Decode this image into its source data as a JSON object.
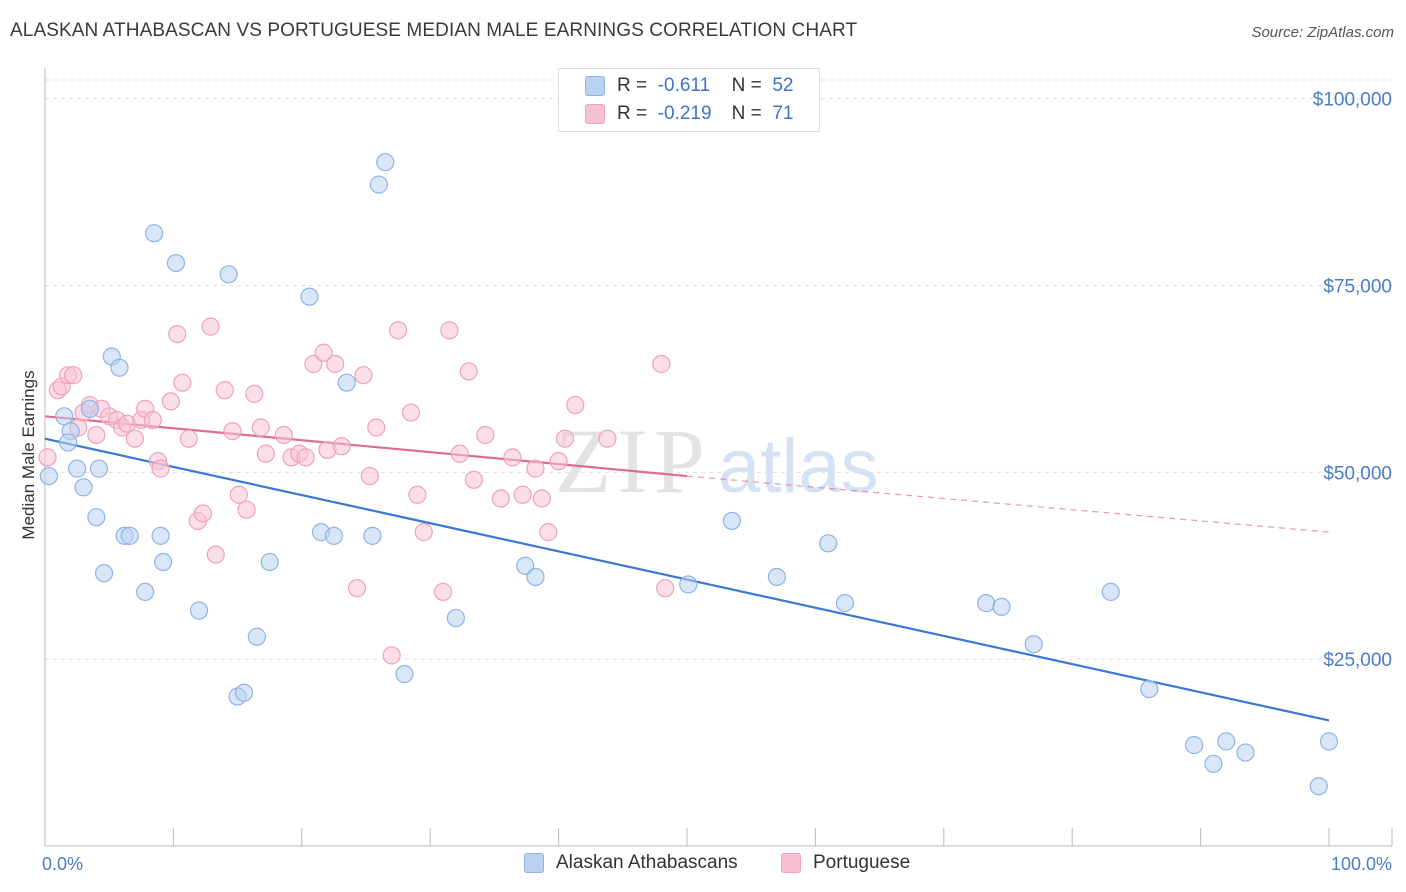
{
  "title": "ALASKAN ATHABASCAN VS PORTUGUESE MEDIAN MALE EARNINGS CORRELATION CHART",
  "source": "Source: ZipAtlas.com",
  "watermark": {
    "zip": "ZIP",
    "atlas": "atlas"
  },
  "legend": {
    "r_label": "R =",
    "n_label": "N =",
    "rows": [
      {
        "r": "-0.611",
        "n": "52"
      },
      {
        "r": "-0.219",
        "n": "71"
      }
    ]
  },
  "bottom_legend": [
    "Alaskan Athabascans",
    "Portuguese"
  ],
  "colors": {
    "blue_fill": "#b9d2f2",
    "blue_stroke": "#8fb3e6",
    "blue_line": "#3a78d4",
    "pink_fill": "#f7c3d3",
    "pink_stroke": "#eea2bb",
    "pink_line": "#e06a93",
    "tick": "#4a7cc7",
    "grid": "#dddddd"
  },
  "chart_data": {
    "type": "scatter",
    "title": "ALASKAN ATHABASCAN VS PORTUGUESE MEDIAN MALE EARNINGS CORRELATION CHART",
    "xlabel": "",
    "ylabel": "Median Male Earnings",
    "x_tick_labels": [
      "0.0%",
      "100.0%"
    ],
    "y_tick_labels": [
      "$25,000",
      "$50,000",
      "$75,000",
      "$100,000"
    ],
    "y_ticks": [
      25000,
      50000,
      75000,
      100000
    ],
    "xlim": [
      0,
      100
    ],
    "ylim": [
      0,
      102500
    ],
    "grid": true,
    "legend_position": "top-center",
    "series": [
      {
        "name": "Alaskan Athabascans",
        "r": -0.611,
        "n": 52,
        "trend": {
          "x": [
            0,
            100
          ],
          "y": [
            54500,
            16800
          ]
        },
        "points": [
          [
            0.3,
            49500
          ],
          [
            1.5,
            57500
          ],
          [
            2,
            55500
          ],
          [
            1.8,
            54000
          ],
          [
            2.5,
            50500
          ],
          [
            3,
            48000
          ],
          [
            3.5,
            58500
          ],
          [
            4,
            44000
          ],
          [
            4.2,
            50500
          ],
          [
            4.6,
            36500
          ],
          [
            5.2,
            65500
          ],
          [
            5.8,
            64000
          ],
          [
            6.2,
            41500
          ],
          [
            6.6,
            41500
          ],
          [
            7.8,
            34000
          ],
          [
            8.5,
            82000
          ],
          [
            9,
            41500
          ],
          [
            9.2,
            38000
          ],
          [
            10.2,
            78000
          ],
          [
            12,
            31500
          ],
          [
            14.3,
            76500
          ],
          [
            15,
            20000
          ],
          [
            15.5,
            20500
          ],
          [
            16.5,
            28000
          ],
          [
            17.5,
            38000
          ],
          [
            20.6,
            73500
          ],
          [
            21.5,
            42000
          ],
          [
            22.5,
            41500
          ],
          [
            23.5,
            62000
          ],
          [
            25.5,
            41500
          ],
          [
            26,
            88500
          ],
          [
            26.5,
            91500
          ],
          [
            28,
            23000
          ],
          [
            32,
            30500
          ],
          [
            37.4,
            37500
          ],
          [
            38.2,
            36000
          ],
          [
            50.1,
            35000
          ],
          [
            53.5,
            43500
          ],
          [
            57,
            36000
          ],
          [
            61,
            40500
          ],
          [
            62.3,
            32500
          ],
          [
            73.3,
            32500
          ],
          [
            74.5,
            32000
          ],
          [
            77,
            27000
          ],
          [
            83,
            34000
          ],
          [
            86,
            21000
          ],
          [
            89.5,
            13500
          ],
          [
            91,
            11000
          ],
          [
            92,
            14000
          ],
          [
            93.5,
            12500
          ],
          [
            99.2,
            8000
          ],
          [
            100,
            14000
          ]
        ]
      },
      {
        "name": "Portuguese",
        "r": -0.219,
        "n": 71,
        "trend": {
          "x": [
            0,
            50
          ],
          "y": [
            57500,
            49500
          ]
        },
        "trend_dashed": {
          "x": [
            50,
            100
          ],
          "y": [
            49500,
            42000
          ]
        },
        "points": [
          [
            0.2,
            52000
          ],
          [
            1,
            61000
          ],
          [
            1.3,
            61500
          ],
          [
            1.8,
            63000
          ],
          [
            2.2,
            63000
          ],
          [
            2.6,
            56000
          ],
          [
            3,
            58000
          ],
          [
            3.5,
            59000
          ],
          [
            4,
            55000
          ],
          [
            4.4,
            58500
          ],
          [
            5,
            57500
          ],
          [
            5.6,
            57000
          ],
          [
            6,
            56000
          ],
          [
            6.4,
            56500
          ],
          [
            7,
            54500
          ],
          [
            7.5,
            57000
          ],
          [
            7.8,
            58500
          ],
          [
            8.4,
            57000
          ],
          [
            8.8,
            51500
          ],
          [
            9,
            50500
          ],
          [
            9.8,
            59500
          ],
          [
            10.3,
            68500
          ],
          [
            10.7,
            62000
          ],
          [
            11.2,
            54500
          ],
          [
            11.9,
            43500
          ],
          [
            12.3,
            44500
          ],
          [
            12.9,
            69500
          ],
          [
            13.3,
            39000
          ],
          [
            14,
            61000
          ],
          [
            14.6,
            55500
          ],
          [
            15.1,
            47000
          ],
          [
            15.7,
            45000
          ],
          [
            16.3,
            60500
          ],
          [
            16.8,
            56000
          ],
          [
            17.2,
            52500
          ],
          [
            18.6,
            55000
          ],
          [
            19.2,
            52000
          ],
          [
            19.8,
            52500
          ],
          [
            20.3,
            52000
          ],
          [
            20.9,
            64500
          ],
          [
            21.7,
            66000
          ],
          [
            22,
            53000
          ],
          [
            22.6,
            64500
          ],
          [
            23.1,
            53500
          ],
          [
            24.3,
            34500
          ],
          [
            24.8,
            63000
          ],
          [
            25.3,
            49500
          ],
          [
            25.8,
            56000
          ],
          [
            27,
            25500
          ],
          [
            27.5,
            69000
          ],
          [
            28.5,
            58000
          ],
          [
            29,
            47000
          ],
          [
            29.5,
            42000
          ],
          [
            31,
            34000
          ],
          [
            31.5,
            69000
          ],
          [
            32.3,
            52500
          ],
          [
            33,
            63500
          ],
          [
            33.4,
            49000
          ],
          [
            34.3,
            55000
          ],
          [
            35.5,
            46500
          ],
          [
            36.4,
            52000
          ],
          [
            37.2,
            47000
          ],
          [
            38.2,
            50500
          ],
          [
            38.7,
            46500
          ],
          [
            39.2,
            42000
          ],
          [
            40,
            51500
          ],
          [
            40.5,
            54500
          ],
          [
            41.3,
            59000
          ],
          [
            43.8,
            54500
          ],
          [
            48,
            64500
          ],
          [
            48.3,
            34500
          ]
        ]
      }
    ]
  }
}
